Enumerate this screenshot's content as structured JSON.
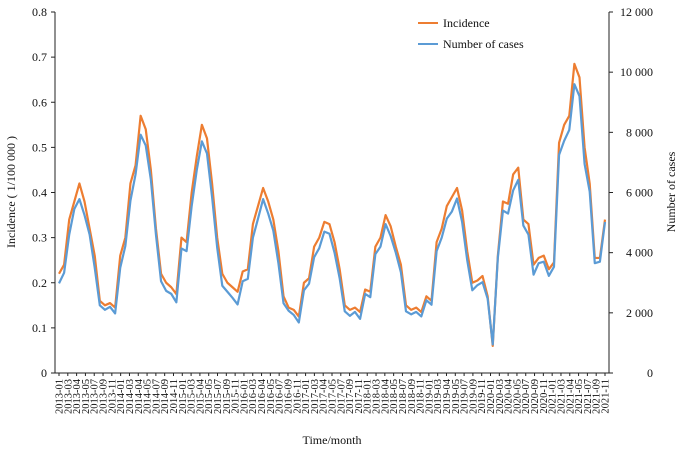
{
  "chart_data": {
    "type": "line",
    "xlabel": "Time/month",
    "ylabel_left": "Incidence ( 1/100 000 )",
    "ylabel_right": "Number of cases",
    "ylim_left": [
      0,
      0.8
    ],
    "ylim_right": [
      0,
      12000
    ],
    "yticks_left": [
      "0",
      "0.1",
      "0.2",
      "0.3",
      "0.4",
      "0.5",
      "0.6",
      "0.7",
      "0.8"
    ],
    "yticks_right": [
      "0",
      "2 000",
      "4 000",
      "6 000",
      "8 000",
      "10 000",
      "12 000"
    ],
    "xtick_labels": [
      "2013-01",
      "2013-03",
      "2013-04",
      "2013-05",
      "2013-07",
      "2013-09",
      "2013-11",
      "2014-01",
      "2014-03",
      "2014-04",
      "2014-05",
      "2014-07",
      "2014-09",
      "2014-11",
      "2015-01",
      "2015-03",
      "2015-04",
      "2015-05",
      "2015-07",
      "2015-09",
      "2015-11",
      "2016-01",
      "2016-03",
      "2016-04",
      "2016-05",
      "2016-07",
      "2016-09",
      "2016-11",
      "2017-01",
      "2017-03",
      "2017-04",
      "2017-05",
      "2017-07",
      "2017-09",
      "2017-11",
      "2018-01",
      "2018-03",
      "2018-04",
      "2018-05",
      "2018-07",
      "2018-09",
      "2018-11",
      "2019-01",
      "2019-03",
      "2019-04",
      "2019-05",
      "2019-07",
      "2019-09",
      "2019-11",
      "2020-01",
      "2020-03",
      "2020-04",
      "2020-05",
      "2020-07",
      "2020-09",
      "2020-11",
      "2021-01",
      "2021-03",
      "2021-04",
      "2021-05",
      "2021-07",
      "2021-09",
      "2021-11"
    ],
    "x": [
      "2013-01",
      "2013-02",
      "2013-03",
      "2013-04",
      "2013-05",
      "2013-06",
      "2013-07",
      "2013-08",
      "2013-09",
      "2013-10",
      "2013-11",
      "2013-12",
      "2014-01",
      "2014-02",
      "2014-03",
      "2014-04",
      "2014-05",
      "2014-06",
      "2014-07",
      "2014-08",
      "2014-09",
      "2014-10",
      "2014-11",
      "2014-12",
      "2015-01",
      "2015-02",
      "2015-03",
      "2015-04",
      "2015-05",
      "2015-06",
      "2015-07",
      "2015-08",
      "2015-09",
      "2015-10",
      "2015-11",
      "2015-12",
      "2016-01",
      "2016-02",
      "2016-03",
      "2016-04",
      "2016-05",
      "2016-06",
      "2016-07",
      "2016-08",
      "2016-09",
      "2016-10",
      "2016-11",
      "2016-12",
      "2017-01",
      "2017-02",
      "2017-03",
      "2017-04",
      "2017-05",
      "2017-06",
      "2017-07",
      "2017-08",
      "2017-09",
      "2017-10",
      "2017-11",
      "2017-12",
      "2018-01",
      "2018-02",
      "2018-03",
      "2018-04",
      "2018-05",
      "2018-06",
      "2018-07",
      "2018-08",
      "2018-09",
      "2018-10",
      "2018-11",
      "2018-12",
      "2019-01",
      "2019-02",
      "2019-03",
      "2019-04",
      "2019-05",
      "2019-06",
      "2019-07",
      "2019-08",
      "2019-09",
      "2019-10",
      "2019-11",
      "2019-12",
      "2020-01",
      "2020-02",
      "2020-03",
      "2020-04",
      "2020-05",
      "2020-06",
      "2020-07",
      "2020-08",
      "2020-09",
      "2020-10",
      "2020-11",
      "2020-12",
      "2021-01",
      "2021-02",
      "2021-03",
      "2021-04",
      "2021-05",
      "2021-06",
      "2021-07",
      "2021-08",
      "2021-09",
      "2021-10",
      "2021-11",
      "2021-12"
    ],
    "series": [
      {
        "name": "Incidence",
        "axis": "left",
        "color": "#ED7D31",
        "values": [
          0.22,
          0.24,
          0.34,
          0.38,
          0.42,
          0.38,
          0.32,
          0.26,
          0.16,
          0.15,
          0.155,
          0.145,
          0.26,
          0.3,
          0.42,
          0.46,
          0.57,
          0.54,
          0.45,
          0.32,
          0.22,
          0.2,
          0.19,
          0.175,
          0.3,
          0.29,
          0.4,
          0.48,
          0.55,
          0.52,
          0.42,
          0.3,
          0.22,
          0.2,
          0.19,
          0.18,
          0.225,
          0.23,
          0.33,
          0.37,
          0.41,
          0.38,
          0.34,
          0.27,
          0.17,
          0.145,
          0.14,
          0.125,
          0.2,
          0.21,
          0.28,
          0.3,
          0.335,
          0.33,
          0.29,
          0.23,
          0.15,
          0.14,
          0.145,
          0.135,
          0.185,
          0.18,
          0.28,
          0.3,
          0.35,
          0.325,
          0.28,
          0.24,
          0.15,
          0.14,
          0.145,
          0.135,
          0.17,
          0.16,
          0.29,
          0.32,
          0.37,
          0.39,
          0.41,
          0.36,
          0.27,
          0.2,
          0.205,
          0.215,
          0.17,
          0.06,
          0.26,
          0.38,
          0.375,
          0.44,
          0.455,
          0.34,
          0.33,
          0.24,
          0.255,
          0.26,
          0.23,
          0.245,
          0.51,
          0.55,
          0.57,
          0.685,
          0.655,
          0.5,
          0.42,
          0.255,
          0.255,
          0.34
        ]
      },
      {
        "name": "Number of cases",
        "axis": "right",
        "color": "#5B9BD5",
        "values": [
          2980,
          3330,
          4600,
          5450,
          5780,
          5250,
          4600,
          3500,
          2250,
          2100,
          2200,
          1980,
          3500,
          4220,
          5730,
          6600,
          7920,
          7560,
          6430,
          4600,
          3050,
          2730,
          2630,
          2350,
          4140,
          4050,
          5550,
          6750,
          7700,
          7300,
          5850,
          4170,
          2900,
          2700,
          2500,
          2280,
          3050,
          3130,
          4500,
          5130,
          5780,
          5300,
          4730,
          3650,
          2320,
          2070,
          1930,
          1680,
          2750,
          2970,
          3850,
          4150,
          4700,
          4630,
          4000,
          3150,
          2050,
          1900,
          2030,
          1800,
          2630,
          2520,
          3950,
          4200,
          4950,
          4550,
          4000,
          3350,
          2050,
          1950,
          2030,
          1880,
          2420,
          2270,
          4050,
          4500,
          5130,
          5370,
          5800,
          5020,
          3750,
          2750,
          2920,
          3020,
          2470,
          950,
          3830,
          5400,
          5300,
          6070,
          6420,
          4900,
          4600,
          3270,
          3650,
          3700,
          3230,
          3530,
          7250,
          7720,
          8080,
          9600,
          9200,
          6950,
          6030,
          3650,
          3700,
          5020
        ]
      }
    ],
    "legend_position": "top-right",
    "grid": false
  }
}
